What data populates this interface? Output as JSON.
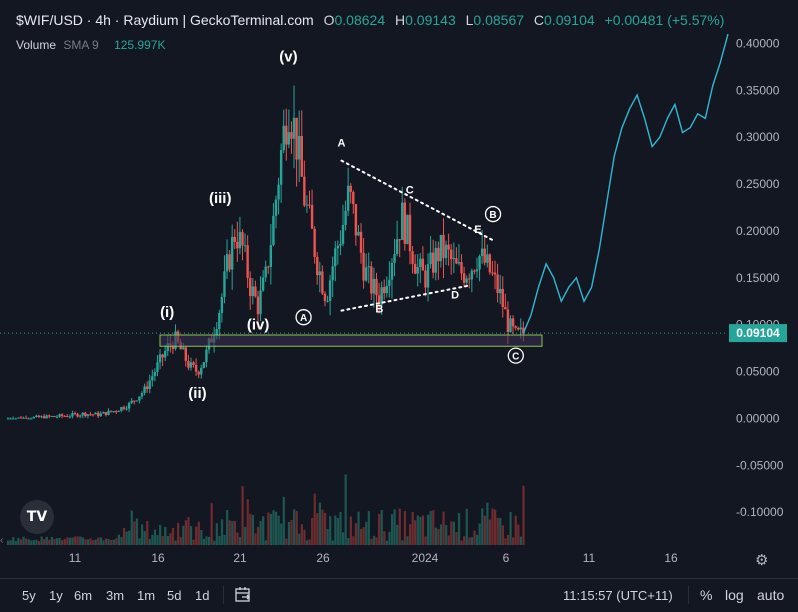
{
  "header": {
    "title": "$WIF/USD · 4h · Raydium | GeckoTerminal.com",
    "o_key": "O",
    "o_val": "0.08624",
    "h_key": "H",
    "h_val": "0.09143",
    "l_key": "L",
    "l_val": "0.08567",
    "c_key": "C",
    "c_val": "0.09104",
    "change": "+0.00481 (+5.57%)"
  },
  "volume": {
    "label": "Volume",
    "indicator": "SMA 9",
    "value": "125.997K"
  },
  "price_badge": "0.09104",
  "toolbar": {
    "timeframes": [
      "5y",
      "1y",
      "6m",
      "3m",
      "1m",
      "5d",
      "1d"
    ],
    "clock": "11:15:57 (UTC+11)",
    "percent": "%",
    "log": "log",
    "auto": "auto",
    "goto_icon": "calendar-goto-icon",
    "settings_icon": "gear-icon"
  },
  "logo_text": "TV",
  "colors": {
    "background": "#131722",
    "up": "#26a69a",
    "down": "#ef5350",
    "projection": "#2fb8d6",
    "zone_fill": "#3a2f55",
    "zone_border": "#8bc34a",
    "price_line": "#26a69a"
  },
  "chart_data": {
    "type": "candlestick",
    "x_ticks": [
      "11",
      "16",
      "21",
      "26",
      "2024",
      "6",
      "11",
      "16"
    ],
    "y_ticks": [
      "0.40000",
      "0.35000",
      "0.30000",
      "0.25000",
      "0.20000",
      "0.15000",
      "0.10000",
      "0.05000",
      "0.00000",
      "-0.05000",
      "-0.10000"
    ],
    "ylim": [
      -0.135,
      0.425
    ],
    "last_price": 0.09104,
    "zone": {
      "low": 0.077,
      "high": 0.089,
      "x_start": "Dec 16",
      "x_end": "Jan 8"
    },
    "price_path": [
      [
        0,
        0.0
      ],
      [
        4,
        0.001
      ],
      [
        8,
        0.003
      ],
      [
        10,
        0.005
      ],
      [
        12,
        0.004
      ],
      [
        14,
        0.008
      ],
      [
        16,
        0.015
      ],
      [
        18,
        0.03
      ],
      [
        19,
        0.045
      ],
      [
        20,
        0.06
      ],
      [
        21,
        0.075
      ],
      [
        22,
        0.085
      ],
      [
        23,
        0.07
      ],
      [
        24,
        0.055
      ],
      [
        25,
        0.05
      ],
      [
        26,
        0.065
      ],
      [
        27,
        0.09
      ],
      [
        28,
        0.12
      ],
      [
        29,
        0.165
      ],
      [
        30,
        0.2
      ],
      [
        31,
        0.18
      ],
      [
        32,
        0.14
      ],
      [
        33,
        0.12
      ],
      [
        34,
        0.15
      ],
      [
        35,
        0.21
      ],
      [
        36,
        0.28
      ],
      [
        37,
        0.34
      ],
      [
        38,
        0.3
      ],
      [
        39,
        0.24
      ],
      [
        40,
        0.2
      ],
      [
        41,
        0.16
      ],
      [
        42,
        0.13
      ],
      [
        43,
        0.17
      ],
      [
        44,
        0.2
      ],
      [
        45,
        0.24
      ],
      [
        46,
        0.2
      ],
      [
        47,
        0.16
      ],
      [
        48,
        0.14
      ],
      [
        49,
        0.13
      ],
      [
        50,
        0.155
      ],
      [
        51,
        0.185
      ],
      [
        52,
        0.215
      ],
      [
        53,
        0.19
      ],
      [
        54,
        0.16
      ],
      [
        55,
        0.15
      ],
      [
        56,
        0.165
      ],
      [
        57,
        0.18
      ],
      [
        58,
        0.175
      ],
      [
        59,
        0.16
      ],
      [
        60,
        0.155
      ],
      [
        61,
        0.16
      ],
      [
        62,
        0.175
      ],
      [
        63,
        0.165
      ],
      [
        64,
        0.15
      ],
      [
        65,
        0.13
      ],
      [
        66,
        0.1
      ],
      [
        67,
        0.088
      ],
      [
        68,
        0.091
      ]
    ],
    "projection_path": [
      [
        68,
        0.091
      ],
      [
        69,
        0.11
      ],
      [
        70,
        0.14
      ],
      [
        71,
        0.165
      ],
      [
        72,
        0.15
      ],
      [
        73,
        0.125
      ],
      [
        74,
        0.14
      ],
      [
        75,
        0.15
      ],
      [
        76,
        0.125
      ],
      [
        77,
        0.14
      ],
      [
        78,
        0.18
      ],
      [
        79,
        0.23
      ],
      [
        80,
        0.28
      ],
      [
        81,
        0.31
      ],
      [
        82,
        0.33
      ],
      [
        83,
        0.345
      ],
      [
        84,
        0.32
      ],
      [
        85,
        0.29
      ],
      [
        86,
        0.3
      ],
      [
        87,
        0.32
      ],
      [
        88,
        0.335
      ],
      [
        89,
        0.305
      ],
      [
        90,
        0.31
      ],
      [
        91,
        0.325
      ],
      [
        92,
        0.32
      ],
      [
        93,
        0.355
      ],
      [
        94,
        0.38
      ],
      [
        95,
        0.41
      ]
    ],
    "wave_labels": [
      {
        "text": "(i)",
        "x": 21,
        "y": 0.108
      },
      {
        "text": "(ii)",
        "x": 25,
        "y": 0.022
      },
      {
        "text": "(iii)",
        "x": 28,
        "y": 0.23
      },
      {
        "text": "(iv)",
        "x": 33,
        "y": 0.095
      },
      {
        "text": "(v)",
        "x": 37,
        "y": 0.381
      },
      {
        "text": "A",
        "x": 44,
        "y": 0.29
      },
      {
        "text": "B",
        "x": 49,
        "y": 0.113
      },
      {
        "text": "C",
        "x": 53,
        "y": 0.24
      },
      {
        "text": "D",
        "x": 59,
        "y": 0.128
      },
      {
        "text": "E",
        "x": 62,
        "y": 0.198
      }
    ],
    "circled_labels": [
      {
        "text": "A",
        "x": 39,
        "y": 0.108
      },
      {
        "text": "B",
        "x": 64,
        "y": 0.218
      },
      {
        "text": "C",
        "x": 67,
        "y": 0.067
      }
    ],
    "triangle_upper": [
      [
        44,
        0.275
      ],
      [
        64,
        0.19
      ]
    ],
    "triangle_lower": [
      [
        44,
        0.115
      ],
      [
        61,
        0.142
      ]
    ],
    "grid": false,
    "legend": "none"
  }
}
